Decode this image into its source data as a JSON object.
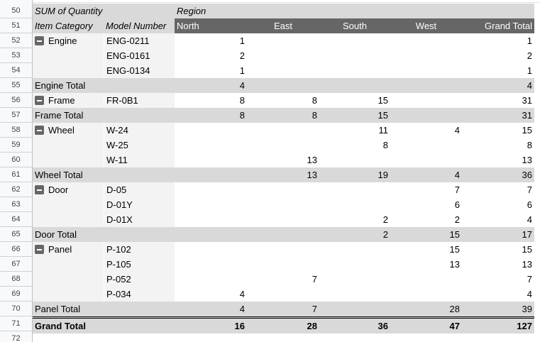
{
  "row_numbers": [
    "50",
    "51",
    "52",
    "53",
    "54",
    "55",
    "56",
    "57",
    "58",
    "59",
    "60",
    "61",
    "62",
    "63",
    "64",
    "65",
    "66",
    "67",
    "68",
    "69",
    "70",
    "71",
    "72"
  ],
  "header": {
    "value_label": "SUM of Quantity",
    "column_field": "Region",
    "row_field_1": "Item Category",
    "row_field_2": "Model Number",
    "columns": [
      "North",
      "East",
      "South",
      "West",
      "Grand Total"
    ]
  },
  "rows": [
    {
      "type": "data",
      "category": "Engine",
      "model": "ENG-0211",
      "values": [
        "1",
        "",
        "",
        "",
        "1"
      ]
    },
    {
      "type": "data",
      "category": "",
      "model": "ENG-0161",
      "values": [
        "2",
        "",
        "",
        "",
        "2"
      ]
    },
    {
      "type": "data",
      "category": "",
      "model": "ENG-0134",
      "values": [
        "1",
        "",
        "",
        "",
        "1"
      ]
    },
    {
      "type": "total",
      "label": "Engine Total",
      "values": [
        "4",
        "",
        "",
        "",
        "4"
      ]
    },
    {
      "type": "data",
      "category": "Frame",
      "model": "FR-0B1",
      "values": [
        "8",
        "8",
        "15",
        "",
        "31"
      ]
    },
    {
      "type": "total",
      "label": "Frame Total",
      "values": [
        "8",
        "8",
        "15",
        "",
        "31"
      ]
    },
    {
      "type": "data",
      "category": "Wheel",
      "model": "W-24",
      "values": [
        "",
        "",
        "11",
        "4",
        "15"
      ]
    },
    {
      "type": "data",
      "category": "",
      "model": "W-25",
      "values": [
        "",
        "",
        "8",
        "",
        "8"
      ]
    },
    {
      "type": "data",
      "category": "",
      "model": "W-11",
      "values": [
        "",
        "13",
        "",
        "",
        "13"
      ]
    },
    {
      "type": "total",
      "label": "Wheel Total",
      "values": [
        "",
        "13",
        "19",
        "4",
        "36"
      ]
    },
    {
      "type": "data",
      "category": "Door",
      "model": "D-05",
      "values": [
        "",
        "",
        "",
        "7",
        "7"
      ]
    },
    {
      "type": "data",
      "category": "",
      "model": "D-01Y",
      "values": [
        "",
        "",
        "",
        "6",
        "6"
      ]
    },
    {
      "type": "data",
      "category": "",
      "model": "D-01X",
      "values": [
        "",
        "",
        "2",
        "2",
        "4"
      ]
    },
    {
      "type": "total",
      "label": "Door Total",
      "values": [
        "",
        "",
        "2",
        "15",
        "17"
      ]
    },
    {
      "type": "data",
      "category": "Panel",
      "model": "P-102",
      "values": [
        "",
        "",
        "",
        "15",
        "15"
      ]
    },
    {
      "type": "data",
      "category": "",
      "model": "P-105",
      "values": [
        "",
        "",
        "",
        "13",
        "13"
      ]
    },
    {
      "type": "data",
      "category": "",
      "model": "P-052",
      "values": [
        "",
        "7",
        "",
        "",
        "7"
      ]
    },
    {
      "type": "data",
      "category": "",
      "model": "P-034",
      "values": [
        "4",
        "",
        "",
        "",
        "4"
      ]
    },
    {
      "type": "total",
      "label": "Panel Total",
      "values": [
        "4",
        "7",
        "",
        "28",
        "39"
      ]
    },
    {
      "type": "grand",
      "label": "Grand Total",
      "values": [
        "16",
        "28",
        "36",
        "47",
        "127"
      ]
    }
  ]
}
